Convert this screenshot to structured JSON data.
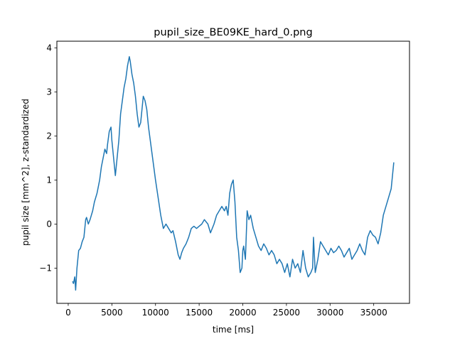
{
  "chart_data": {
    "type": "line",
    "title": "pupil_size_BE09KE_hard_0.png",
    "xlabel": "time [ms]",
    "ylabel": "pupil size [mm^2], z-standardized",
    "xlim": [
      -1300,
      39100
    ],
    "ylim": [
      -1.8,
      4.15
    ],
    "xticks": [
      0,
      5000,
      10000,
      15000,
      20000,
      25000,
      30000,
      35000
    ],
    "xtick_labels": [
      "0",
      "5000",
      "10000",
      "15000",
      "20000",
      "25000",
      "30000",
      "35000"
    ],
    "yticks": [
      -1,
      0,
      1,
      2,
      3,
      4
    ],
    "ytick_labels": [
      "−1",
      "0",
      "1",
      "2",
      "3",
      "4"
    ],
    "grid": false,
    "line_color": "#1f77b4",
    "series": [
      {
        "x": [
          500,
          600,
          750,
          850,
          1000,
          1200,
          1400,
          1600,
          1800,
          2000,
          2100,
          2300,
          2500,
          2800,
          3000,
          3300,
          3600,
          3800,
          4000,
          4200,
          4400,
          4500,
          4700,
          4900,
          5000,
          5200,
          5400,
          5600,
          5800,
          6000,
          6200,
          6400,
          6600,
          6800,
          7000,
          7100,
          7300,
          7500,
          7700,
          7900,
          8100,
          8300,
          8500,
          8600,
          8800,
          9000,
          9200,
          9400,
          9600,
          9800,
          10000,
          10300,
          10600,
          10900,
          11200,
          11500,
          11800,
          12000,
          12300,
          12600,
          12800,
          13000,
          13200,
          13500,
          13800,
          14100,
          14400,
          14700,
          15000,
          15300,
          15600,
          16000,
          16300,
          16700,
          17000,
          17300,
          17600,
          17900,
          18100,
          18300,
          18500,
          18700,
          18900,
          19100,
          19300,
          19500,
          19700,
          19900,
          20000,
          20100,
          20300,
          20500,
          20700,
          20900,
          21200,
          21500,
          21800,
          22100,
          22400,
          22700,
          23000,
          23300,
          23600,
          23900,
          24200,
          24500,
          24800,
          25100,
          25400,
          25700,
          26000,
          26300,
          26600,
          26900,
          27200,
          27500,
          27800,
          28000,
          28100,
          28300,
          28600,
          28900,
          29200,
          29500,
          29800,
          30100,
          30400,
          30700,
          31000,
          31300,
          31600,
          31900,
          32200,
          32500,
          32800,
          33100,
          33400,
          33700,
          34000,
          34300,
          34600,
          34900,
          35200,
          35500,
          35800,
          36100,
          36400,
          36700,
          37000,
          37300
        ],
        "y": [
          -1.3,
          -1.35,
          -1.2,
          -1.5,
          -1.0,
          -0.6,
          -0.55,
          -0.4,
          -0.3,
          0.1,
          0.15,
          0.0,
          0.1,
          0.3,
          0.5,
          0.7,
          1.0,
          1.3,
          1.5,
          1.7,
          1.6,
          1.8,
          2.1,
          2.2,
          1.9,
          1.5,
          1.1,
          1.5,
          1.9,
          2.5,
          2.8,
          3.1,
          3.3,
          3.6,
          3.8,
          3.7,
          3.4,
          3.2,
          2.9,
          2.5,
          2.2,
          2.3,
          2.7,
          2.9,
          2.8,
          2.6,
          2.2,
          1.9,
          1.6,
          1.3,
          1.0,
          0.6,
          0.2,
          -0.1,
          0.0,
          -0.1,
          -0.2,
          -0.15,
          -0.4,
          -0.7,
          -0.8,
          -0.65,
          -0.55,
          -0.45,
          -0.3,
          -0.1,
          -0.05,
          -0.1,
          -0.05,
          0.0,
          0.1,
          0.0,
          -0.2,
          0.0,
          0.2,
          0.3,
          0.4,
          0.3,
          0.4,
          0.2,
          0.7,
          0.9,
          1.0,
          0.5,
          -0.3,
          -0.6,
          -1.1,
          -1.0,
          -0.6,
          -0.5,
          -0.8,
          0.3,
          0.1,
          0.2,
          -0.1,
          -0.3,
          -0.5,
          -0.6,
          -0.45,
          -0.55,
          -0.7,
          -0.6,
          -0.7,
          -0.9,
          -0.8,
          -0.9,
          -1.1,
          -0.9,
          -1.2,
          -0.8,
          -1.0,
          -0.9,
          -1.1,
          -0.6,
          -1.0,
          -1.2,
          -1.1,
          -1.0,
          -0.3,
          -1.1,
          -0.8,
          -0.4,
          -0.5,
          -0.6,
          -0.7,
          -0.55,
          -0.65,
          -0.6,
          -0.5,
          -0.6,
          -0.75,
          -0.65,
          -0.55,
          -0.8,
          -0.7,
          -0.6,
          -0.45,
          -0.6,
          -0.7,
          -0.3,
          -0.15,
          -0.25,
          -0.3,
          -0.45,
          -0.2,
          0.2,
          0.4,
          0.6,
          0.8,
          1.4
        ]
      }
    ]
  }
}
